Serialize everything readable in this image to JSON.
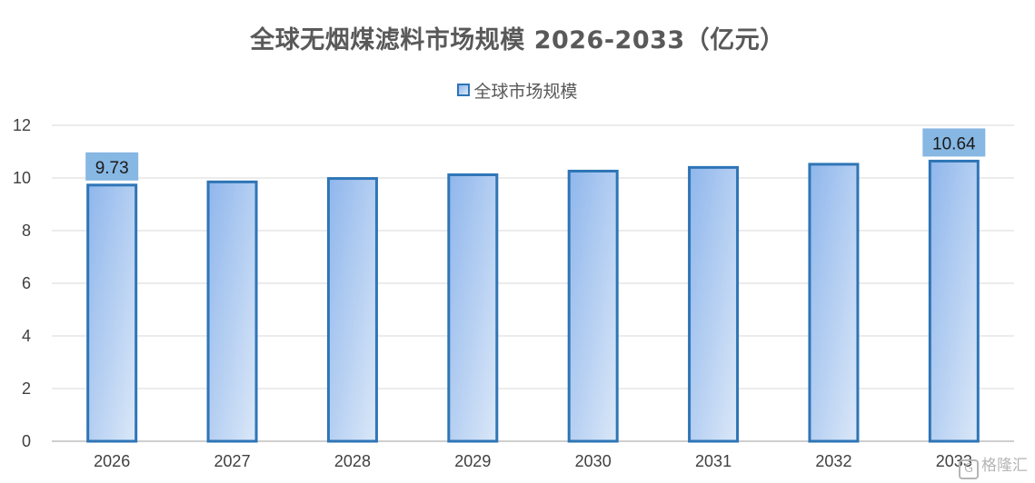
{
  "chart_data": {
    "type": "bar",
    "title": "全球无烟煤滤料市场规模 2026-2033（亿元）",
    "xlabel": "",
    "ylabel": "",
    "categories": [
      "2026",
      "2027",
      "2028",
      "2029",
      "2030",
      "2031",
      "2032",
      "2033"
    ],
    "series": [
      {
        "name": "全球市场规模",
        "values": [
          9.73,
          9.85,
          9.98,
          10.12,
          10.26,
          10.4,
          10.52,
          10.64
        ]
      }
    ],
    "data_labels": [
      {
        "index": 0,
        "text": "9.73"
      },
      {
        "index": 7,
        "text": "10.64"
      }
    ],
    "ylim": [
      0,
      12
    ],
    "yticks": [
      0,
      2,
      4,
      6,
      8,
      10,
      12
    ],
    "grid": true,
    "legend_position": "top-center",
    "colors": {
      "bar_border": "#2e75b6",
      "bar_fill_top": "#8fb6ec",
      "bar_fill_bottom": "#dbe8f8",
      "label_box": "#87b7e3",
      "grid": "#d9d9d9",
      "axis": "#bfbfbf"
    }
  },
  "watermark": {
    "text": "格隆汇",
    "logo": "G"
  }
}
